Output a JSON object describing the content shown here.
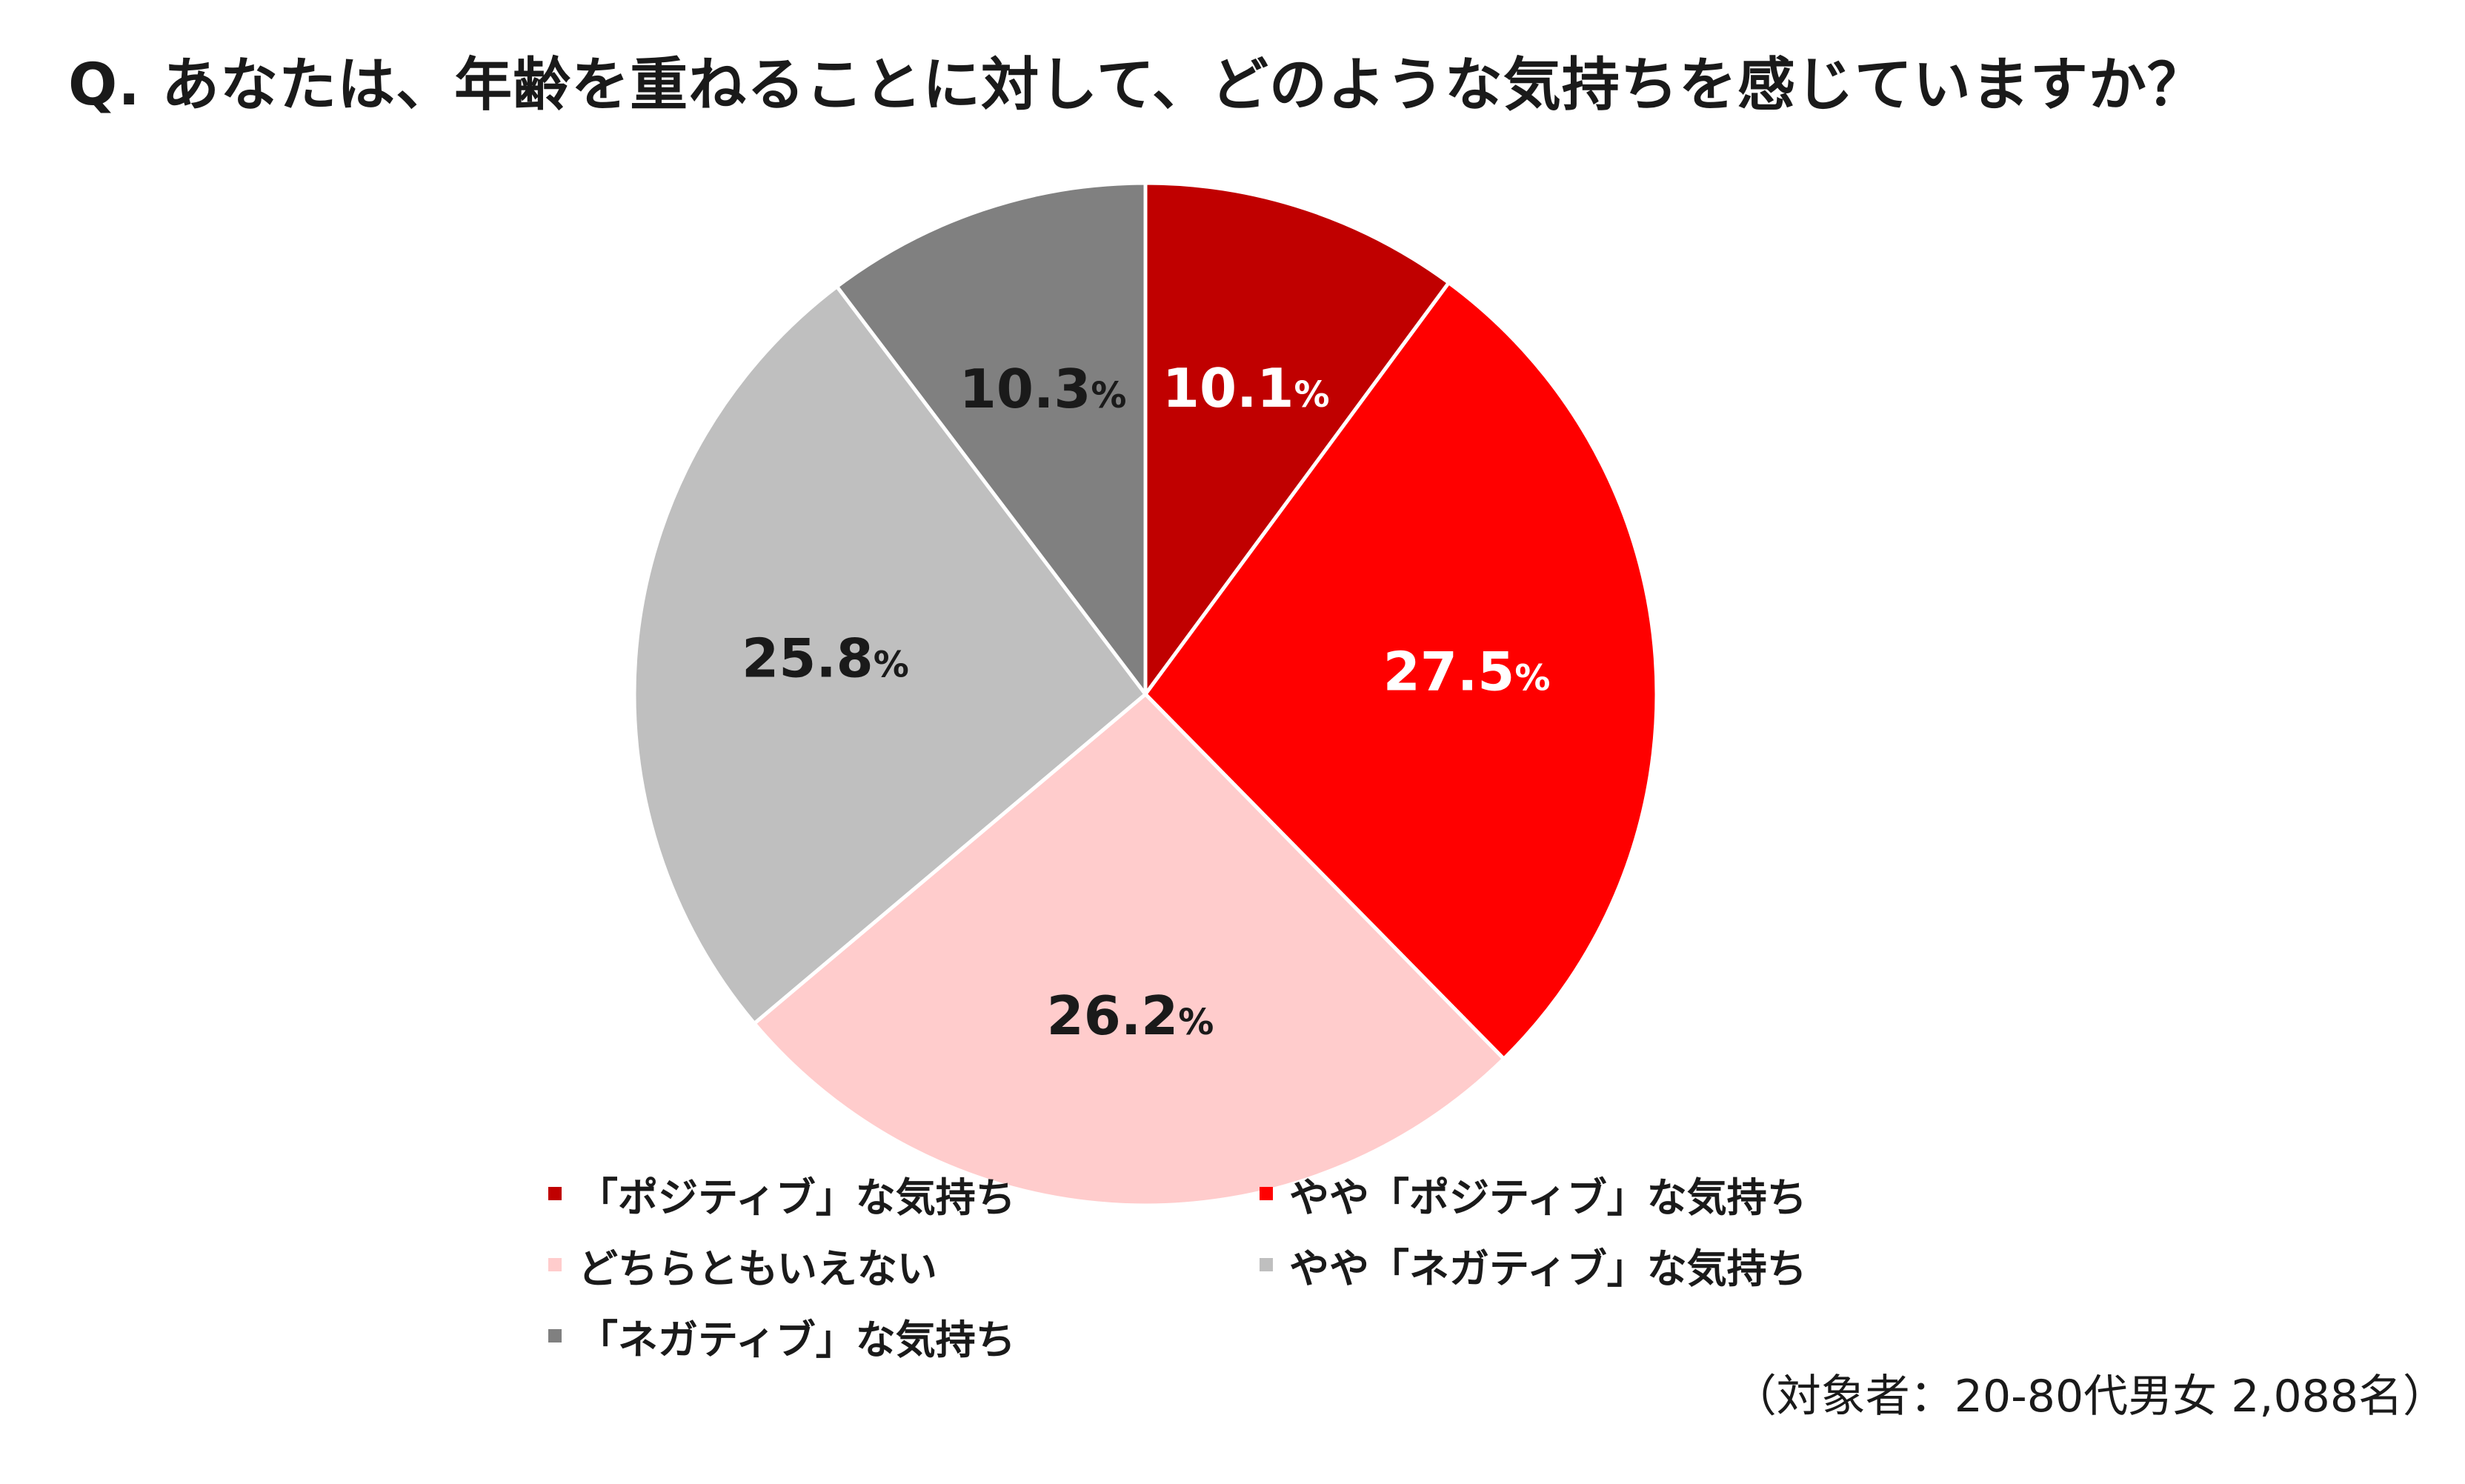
{
  "title": "Q. あなたは、年齢を重ねることに対して、どのような気持ちを感じていますか？",
  "footnote": "（対象者：20-80代男女 2,088名）",
  "chart_data": {
    "type": "pie",
    "title": "Q. あなたは、年齢を重ねることに対して、どのような気持ちを感じていますか？",
    "unit": "%",
    "start_angle_deg": 0,
    "direction": "clockwise",
    "legend_position": "bottom",
    "slices": [
      {
        "label": "「ポジティブ」な気持ち",
        "value": 10.1,
        "display": "10.1",
        "color": "#c00000",
        "text_color": "#ffffff"
      },
      {
        "label": "やや「ポジティブ」な気持ち",
        "value": 27.5,
        "display": "27.5",
        "color": "#ff0000",
        "text_color": "#ffffff"
      },
      {
        "label": "どちらともいえない",
        "value": 26.2,
        "display": "26.2",
        "color": "#ffcccc",
        "text_color": "#1a1a1a"
      },
      {
        "label": "やや「ネガティブ」な気持ち",
        "value": 25.8,
        "display": "25.8",
        "color": "#bfbfbf",
        "text_color": "#1a1a1a"
      },
      {
        "label": "「ネガティブ」な気持ち",
        "value": 10.3,
        "display": "10.3",
        "color": "#808080",
        "text_color": "#1a1a1a"
      }
    ]
  }
}
